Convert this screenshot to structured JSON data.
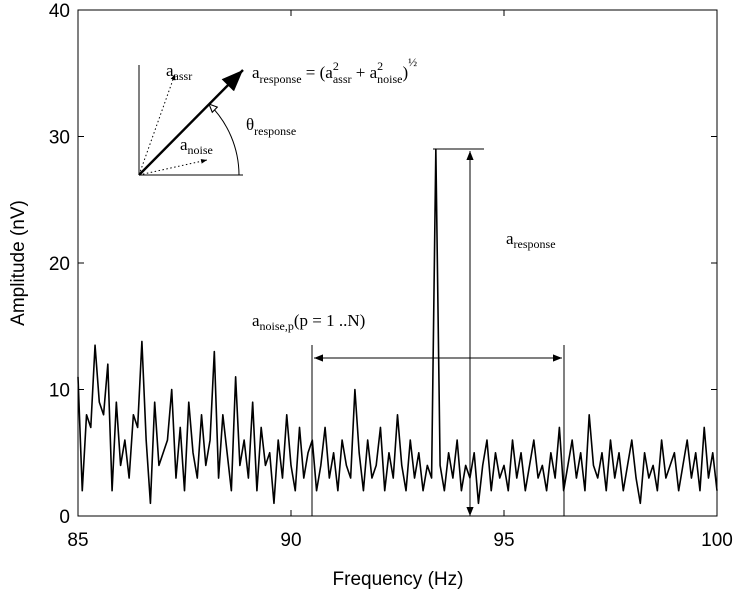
{
  "chart_data": {
    "type": "line",
    "xlabel": "Frequency (Hz)",
    "ylabel": "Amplitude (nV)",
    "xlim": [
      85,
      100
    ],
    "xticks": [
      85,
      90,
      95,
      100
    ],
    "ylim": [
      0,
      40
    ],
    "yticks": [
      0,
      10,
      20,
      30,
      40
    ],
    "x": [
      85.0,
      85.1,
      85.2,
      85.3,
      85.4,
      85.5,
      85.6,
      85.7,
      85.8,
      85.9,
      86.0,
      86.1,
      86.2,
      86.3,
      86.4,
      86.5,
      86.6,
      86.7,
      86.8,
      86.9,
      87.0,
      87.1,
      87.2,
      87.3,
      87.4,
      87.5,
      87.6,
      87.7,
      87.8,
      87.9,
      88.0,
      88.1,
      88.2,
      88.3,
      88.4,
      88.5,
      88.6,
      88.7,
      88.8,
      88.9,
      89.0,
      89.1,
      89.2,
      89.3,
      89.4,
      89.5,
      89.6,
      89.7,
      89.8,
      89.9,
      90.0,
      90.1,
      90.2,
      90.3,
      90.4,
      90.5,
      90.6,
      90.7,
      90.8,
      90.9,
      91.0,
      91.1,
      91.2,
      91.3,
      91.4,
      91.5,
      91.6,
      91.7,
      91.8,
      91.9,
      92.0,
      92.1,
      92.2,
      92.3,
      92.4,
      92.5,
      92.6,
      92.7,
      92.8,
      92.9,
      93.0,
      93.1,
      93.2,
      93.3,
      93.4,
      93.5,
      93.6,
      93.7,
      93.8,
      93.9,
      94.0,
      94.1,
      94.2,
      94.3,
      94.4,
      94.5,
      94.6,
      94.7,
      94.8,
      94.9,
      95.0,
      95.1,
      95.2,
      95.3,
      95.4,
      95.5,
      95.6,
      95.7,
      95.8,
      95.9,
      96.0,
      96.1,
      96.2,
      96.3,
      96.4,
      96.5,
      96.6,
      96.7,
      96.8,
      96.9,
      97.0,
      97.1,
      97.2,
      97.3,
      97.4,
      97.5,
      97.6,
      97.7,
      97.8,
      97.9,
      98.0,
      98.1,
      98.2,
      98.3,
      98.4,
      98.5,
      98.6,
      98.7,
      98.8,
      98.9,
      99.0,
      99.1,
      99.2,
      99.3,
      99.4,
      99.5,
      99.6,
      99.7,
      99.8,
      99.9,
      100.0
    ],
    "series": [
      {
        "color": "#000000",
        "values": [
          11,
          2,
          8,
          7,
          13.5,
          9,
          8,
          12,
          2,
          9,
          4,
          6,
          3,
          8,
          7,
          13.8,
          6,
          1,
          9,
          4,
          5,
          6,
          10,
          3,
          7,
          2,
          9,
          5,
          3,
          8,
          4,
          6,
          13,
          3,
          8,
          5,
          2,
          11,
          4,
          6,
          3,
          9,
          2,
          7,
          4,
          5,
          1,
          6,
          3,
          8,
          4,
          2,
          7,
          3,
          5,
          6,
          2,
          4,
          7,
          3,
          5,
          2,
          6,
          4,
          3,
          10,
          5,
          2,
          6,
          3,
          4,
          7,
          2,
          5,
          3,
          8,
          4,
          2,
          6,
          3,
          5,
          2,
          4,
          3,
          29,
          4,
          2,
          5,
          3,
          6,
          2,
          4,
          3,
          5,
          1,
          4,
          6,
          2,
          5,
          3,
          4,
          2,
          6,
          3,
          5,
          2,
          4,
          6,
          3,
          4,
          2,
          5,
          3,
          7,
          2,
          4,
          6,
          3,
          5,
          2,
          8,
          4,
          3,
          5,
          2,
          6,
          3,
          5,
          2,
          4,
          6,
          3,
          1,
          5,
          3,
          4,
          2,
          6,
          3,
          4,
          5,
          2,
          4,
          6,
          3,
          5,
          2,
          7,
          3,
          5,
          2
        ]
      }
    ],
    "annotations": {
      "equation": [
        "a",
        "response",
        " = (a",
        "2",
        "assr",
        " + a",
        "2",
        "noise",
        ")",
        "½"
      ],
      "assr": [
        "a",
        "assr"
      ],
      "noise": [
        "a",
        "noise"
      ],
      "theta": [
        "θ",
        "response"
      ],
      "response": [
        "a",
        "response"
      ],
      "noise_range": [
        "a",
        "noise,p",
        "(p = 1 ..N)"
      ]
    }
  }
}
